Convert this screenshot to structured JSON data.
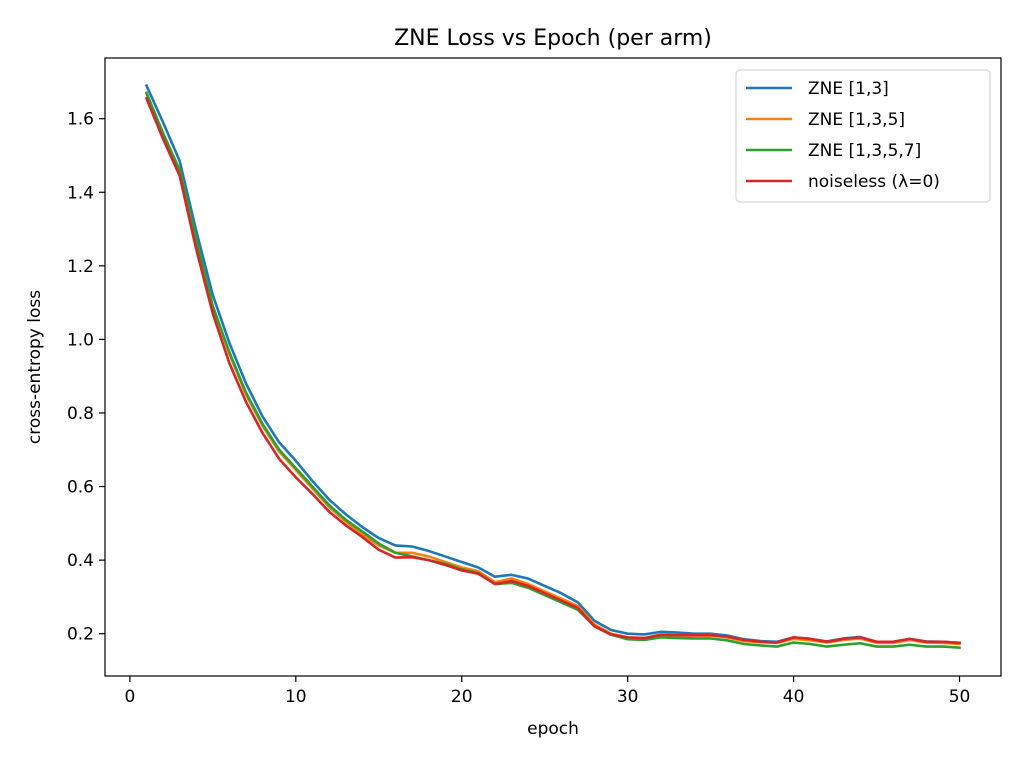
{
  "chart_data": {
    "type": "line",
    "title": "ZNE Loss vs Epoch (per arm)",
    "xlabel": "epoch",
    "ylabel": "cross-entropy loss",
    "xlim": [
      -1.5,
      52.5
    ],
    "ylim": [
      0.085,
      1.765
    ],
    "xticks": [
      0,
      10,
      20,
      30,
      40,
      50
    ],
    "yticks": [
      0.2,
      0.4,
      0.6,
      0.8,
      1.0,
      1.2,
      1.4,
      1.6
    ],
    "xtick_labels": [
      "0",
      "10",
      "20",
      "30",
      "40",
      "50"
    ],
    "ytick_labels": [
      "0.2",
      "0.4",
      "0.6",
      "0.8",
      "1.0",
      "1.2",
      "1.4",
      "1.6"
    ],
    "grid": false,
    "legend_position": "upper right",
    "x": [
      1,
      2,
      3,
      4,
      5,
      6,
      7,
      8,
      9,
      10,
      11,
      12,
      13,
      14,
      15,
      16,
      17,
      18,
      19,
      20,
      21,
      22,
      23,
      24,
      25,
      26,
      27,
      28,
      29,
      30,
      31,
      32,
      33,
      34,
      35,
      36,
      37,
      38,
      39,
      40,
      41,
      42,
      43,
      44,
      45,
      46,
      47,
      48,
      49,
      50
    ],
    "series": [
      {
        "name": "ZNE [1,3]",
        "color": "#1f77b4",
        "values": [
          1.69,
          1.59,
          1.485,
          1.295,
          1.12,
          0.99,
          0.88,
          0.79,
          0.72,
          0.67,
          0.615,
          0.565,
          0.525,
          0.49,
          0.46,
          0.44,
          0.437,
          0.425,
          0.41,
          0.395,
          0.38,
          0.355,
          0.36,
          0.35,
          0.33,
          0.31,
          0.285,
          0.235,
          0.21,
          0.2,
          0.198,
          0.205,
          0.203,
          0.2,
          0.2,
          0.195,
          0.185,
          0.18,
          0.178,
          0.19,
          0.186,
          0.179,
          0.187,
          0.191,
          0.178,
          0.178,
          0.186,
          0.179,
          0.178,
          0.175
        ]
      },
      {
        "name": "ZNE [1,3,5]",
        "color": "#ff7f0e",
        "values": [
          1.67,
          1.56,
          1.46,
          1.27,
          1.09,
          0.96,
          0.85,
          0.765,
          0.695,
          0.645,
          0.595,
          0.545,
          0.505,
          0.47,
          0.44,
          0.42,
          0.42,
          0.41,
          0.395,
          0.38,
          0.37,
          0.34,
          0.35,
          0.335,
          0.315,
          0.295,
          0.275,
          0.225,
          0.2,
          0.19,
          0.188,
          0.197,
          0.195,
          0.195,
          0.195,
          0.19,
          0.18,
          0.177,
          0.175,
          0.186,
          0.182,
          0.176,
          0.183,
          0.187,
          0.175,
          0.175,
          0.183,
          0.176,
          0.175,
          0.172
        ]
      },
      {
        "name": "ZNE [1,3,5,7]",
        "color": "#2ca02c",
        "values": [
          1.67,
          1.56,
          1.46,
          1.27,
          1.09,
          0.965,
          0.855,
          0.77,
          0.7,
          0.65,
          0.6,
          0.55,
          0.51,
          0.478,
          0.445,
          0.42,
          0.41,
          0.4,
          0.39,
          0.375,
          0.365,
          0.335,
          0.338,
          0.325,
          0.305,
          0.285,
          0.265,
          0.22,
          0.197,
          0.185,
          0.183,
          0.19,
          0.188,
          0.187,
          0.187,
          0.182,
          0.172,
          0.168,
          0.165,
          0.176,
          0.172,
          0.165,
          0.17,
          0.174,
          0.165,
          0.165,
          0.17,
          0.165,
          0.165,
          0.162
        ]
      },
      {
        "name": "noiseless (λ=0)",
        "color": "#d62728",
        "values": [
          1.655,
          1.545,
          1.445,
          1.245,
          1.07,
          0.935,
          0.83,
          0.745,
          0.675,
          0.625,
          0.58,
          0.532,
          0.495,
          0.463,
          0.428,
          0.407,
          0.408,
          0.4,
          0.387,
          0.372,
          0.363,
          0.335,
          0.343,
          0.33,
          0.31,
          0.29,
          0.27,
          0.22,
          0.198,
          0.19,
          0.188,
          0.197,
          0.196,
          0.196,
          0.196,
          0.192,
          0.183,
          0.178,
          0.176,
          0.19,
          0.186,
          0.178,
          0.186,
          0.19,
          0.178,
          0.178,
          0.186,
          0.178,
          0.178,
          0.175
        ]
      }
    ]
  }
}
